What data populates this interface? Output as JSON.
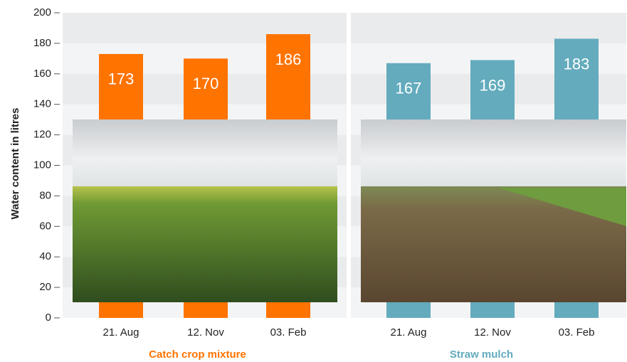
{
  "chart_data": [
    {
      "type": "bar",
      "ylabel": "Water content in litres",
      "xlabel": "Catch crop mixture",
      "categories": [
        "21. Aug",
        "12. Nov",
        "03. Feb"
      ],
      "values": [
        173,
        170,
        186
      ],
      "color": "#ff7300",
      "ylim": [
        0,
        200
      ],
      "yticks": [
        0,
        20,
        40,
        60,
        80,
        100,
        120,
        140,
        160,
        180,
        200
      ]
    },
    {
      "type": "bar",
      "xlabel": "Straw mulch",
      "categories": [
        "21. Aug",
        "12. Nov",
        "03. Feb"
      ],
      "values": [
        167,
        169,
        183
      ],
      "color": "#63abbd",
      "ylim": [
        0,
        200
      ]
    }
  ]
}
